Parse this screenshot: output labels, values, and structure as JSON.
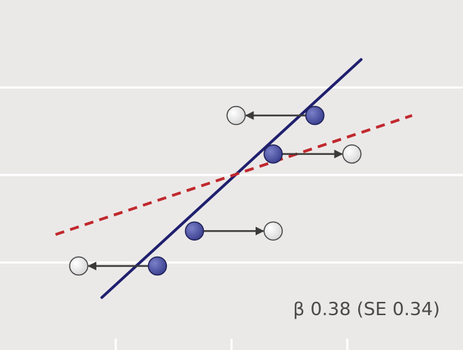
{
  "chart_data": {
    "type": "scatter",
    "title": "",
    "xlabel": "",
    "ylabel": "",
    "xlim": [
      0,
      10
    ],
    "ylim": [
      0,
      10
    ],
    "grid": true,
    "annotation": "β 0.38 (SE 0.34)",
    "colors": {
      "panel": "#ebe9e8",
      "gridline": "#ffffff",
      "tick": "#ffffff",
      "true_line": "#1f1f6e",
      "fitted_line": "#c0282d",
      "arrow": "#3a3a3a",
      "true_point": "#3b3f8f",
      "observed_point": "#f2f2f2",
      "observed_point_edge": "#444444",
      "text": "#4a4a4a"
    },
    "x_ticks": [
      2.5,
      5.0,
      7.5
    ],
    "y_gridlines": [
      2.5,
      5.0,
      7.5
    ],
    "series": [
      {
        "kind": "line",
        "style": "solid",
        "points": [
          [
            2.2,
            1.5
          ],
          [
            7.8,
            8.3
          ]
        ]
      },
      {
        "kind": "line",
        "style": "dashed",
        "points": [
          [
            1.2,
            3.3
          ],
          [
            8.9,
            6.7
          ]
        ]
      }
    ],
    "true_points": [
      {
        "x": 3.4,
        "y": 2.4
      },
      {
        "x": 4.2,
        "y": 3.4
      },
      {
        "x": 5.9,
        "y": 5.6
      },
      {
        "x": 6.8,
        "y": 6.7
      }
    ],
    "observed_points": [
      {
        "x": 1.7,
        "y": 2.4
      },
      {
        "x": 5.9,
        "y": 3.4
      },
      {
        "x": 7.6,
        "y": 5.6
      },
      {
        "x": 5.1,
        "y": 6.7
      }
    ]
  }
}
